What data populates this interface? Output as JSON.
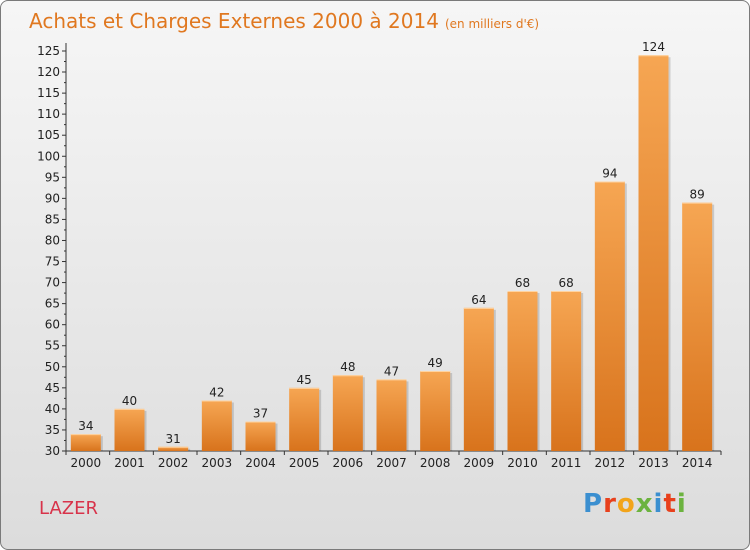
{
  "header": {
    "title": "Achats et Charges Externes 2000 à 2014",
    "subtitle": "(en milliers d'€)"
  },
  "footer": {
    "commune": "LAZER",
    "logo_text": "Proxiti"
  },
  "colors": {
    "title": "#e07820",
    "bar_light": "#f6a653",
    "bar_dark": "#d8731c",
    "commune": "#d8334a"
  },
  "chart_data": {
    "type": "bar",
    "categories": [
      "2000",
      "2001",
      "2002",
      "2003",
      "2004",
      "2005",
      "2006",
      "2007",
      "2008",
      "2009",
      "2010",
      "2011",
      "2012",
      "2013",
      "2014"
    ],
    "values": [
      34,
      40,
      31,
      42,
      37,
      45,
      48,
      47,
      49,
      64,
      68,
      68,
      94,
      124,
      89
    ],
    "title": "Achats et Charges Externes 2000 à 2014",
    "subtitle": "(en milliers d'€)",
    "xlabel": "",
    "ylabel": "",
    "ylim": [
      30,
      125
    ],
    "yticks": [
      30,
      35,
      40,
      45,
      50,
      55,
      60,
      65,
      70,
      75,
      80,
      85,
      90,
      95,
      100,
      105,
      110,
      115,
      120,
      125
    ],
    "grid": false,
    "legend": "none"
  }
}
